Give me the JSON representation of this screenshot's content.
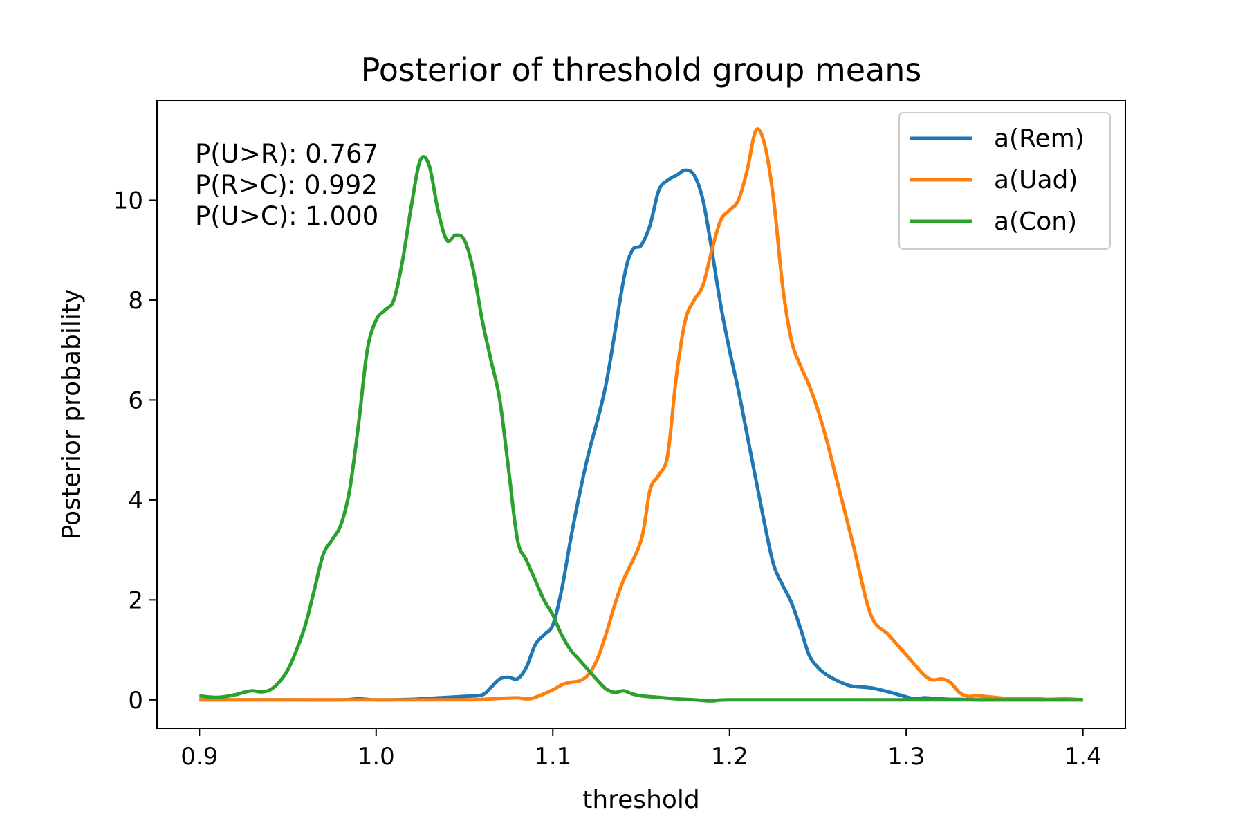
{
  "chart_data": {
    "type": "line",
    "title": "Posterior of threshold group means",
    "xlabel": "threshold",
    "ylabel": "Posterior probability",
    "xlim": [
      0.876,
      1.424
    ],
    "ylim": [
      -0.57,
      12.0
    ],
    "xticks": [
      0.9,
      1.0,
      1.1,
      1.2,
      1.3,
      1.4
    ],
    "xtick_labels": [
      "0.9",
      "1.0",
      "1.1",
      "1.2",
      "1.3",
      "1.4"
    ],
    "yticks": [
      0,
      2,
      4,
      6,
      8,
      10
    ],
    "ytick_labels": [
      "0",
      "2",
      "4",
      "6",
      "8",
      "10"
    ],
    "grid": false,
    "legend_position": "top-right",
    "annotations": [
      "P(U>R): 0.767",
      "P(R>C): 0.992",
      "P(U>C): 1.000"
    ],
    "series": [
      {
        "name": "a(Rem)",
        "color": "#1f77b4",
        "x": [
          0.9,
          0.95,
          0.98,
          0.99,
          1.0,
          1.02,
          1.04,
          1.05,
          1.06,
          1.065,
          1.07,
          1.075,
          1.08,
          1.085,
          1.09,
          1.095,
          1.1,
          1.105,
          1.11,
          1.115,
          1.12,
          1.13,
          1.14,
          1.145,
          1.15,
          1.155,
          1.16,
          1.165,
          1.17,
          1.175,
          1.18,
          1.185,
          1.19,
          1.195,
          1.2,
          1.205,
          1.21,
          1.22,
          1.225,
          1.23,
          1.235,
          1.24,
          1.245,
          1.25,
          1.255,
          1.26,
          1.265,
          1.27,
          1.28,
          1.29,
          1.3,
          1.305,
          1.31,
          1.315,
          1.32,
          1.325,
          1.33,
          1.34,
          1.35,
          1.36,
          1.4
        ],
        "y": [
          0.0,
          0.0,
          0.0,
          0.02,
          0.0,
          0.01,
          0.05,
          0.07,
          0.1,
          0.25,
          0.42,
          0.45,
          0.42,
          0.65,
          1.1,
          1.3,
          1.5,
          2.2,
          3.2,
          4.1,
          4.9,
          6.3,
          8.4,
          9.0,
          9.1,
          9.5,
          10.2,
          10.4,
          10.5,
          10.6,
          10.5,
          10.0,
          9.0,
          7.9,
          7.0,
          6.2,
          5.3,
          3.5,
          2.7,
          2.3,
          1.95,
          1.45,
          0.9,
          0.65,
          0.5,
          0.4,
          0.32,
          0.27,
          0.24,
          0.16,
          0.06,
          0.02,
          0.04,
          0.03,
          0.02,
          0.01,
          0.01,
          0.0,
          0.0,
          0.0,
          0.0
        ]
      },
      {
        "name": "a(Uad)",
        "color": "#ff7f0e",
        "x": [
          0.9,
          0.95,
          1.0,
          1.05,
          1.06,
          1.07,
          1.08,
          1.085,
          1.09,
          1.1,
          1.105,
          1.11,
          1.115,
          1.12,
          1.125,
          1.13,
          1.135,
          1.14,
          1.15,
          1.155,
          1.16,
          1.165,
          1.17,
          1.175,
          1.18,
          1.185,
          1.19,
          1.195,
          1.2,
          1.205,
          1.21,
          1.215,
          1.22,
          1.225,
          1.23,
          1.235,
          1.24,
          1.245,
          1.25,
          1.255,
          1.26,
          1.27,
          1.28,
          1.29,
          1.3,
          1.31,
          1.315,
          1.32,
          1.325,
          1.33,
          1.335,
          1.34,
          1.35,
          1.36,
          1.37,
          1.38,
          1.39,
          1.4
        ],
        "y": [
          0.0,
          0.0,
          0.0,
          0.0,
          0.01,
          0.03,
          0.04,
          0.02,
          0.05,
          0.2,
          0.3,
          0.35,
          0.38,
          0.5,
          0.8,
          1.3,
          1.9,
          2.4,
          3.2,
          4.2,
          4.5,
          4.9,
          6.5,
          7.6,
          8.0,
          8.3,
          9.0,
          9.6,
          9.8,
          10.0,
          10.6,
          11.4,
          11.1,
          10.0,
          8.3,
          7.2,
          6.7,
          6.3,
          5.8,
          5.2,
          4.5,
          3.1,
          1.7,
          1.3,
          0.9,
          0.5,
          0.4,
          0.42,
          0.35,
          0.15,
          0.07,
          0.08,
          0.05,
          0.02,
          0.03,
          0.01,
          0.02,
          0.0
        ]
      },
      {
        "name": "a(Con)",
        "color": "#2ca02c",
        "x": [
          0.9,
          0.91,
          0.92,
          0.925,
          0.93,
          0.935,
          0.94,
          0.945,
          0.95,
          0.955,
          0.96,
          0.965,
          0.97,
          0.975,
          0.98,
          0.985,
          0.99,
          0.995,
          1.0,
          1.005,
          1.01,
          1.015,
          1.02,
          1.025,
          1.03,
          1.035,
          1.04,
          1.045,
          1.05,
          1.055,
          1.06,
          1.065,
          1.07,
          1.075,
          1.08,
          1.085,
          1.09,
          1.095,
          1.1,
          1.105,
          1.11,
          1.115,
          1.12,
          1.125,
          1.13,
          1.135,
          1.14,
          1.145,
          1.15,
          1.16,
          1.17,
          1.18,
          1.19,
          1.2,
          1.25,
          1.3,
          1.35,
          1.4
        ],
        "y": [
          0.08,
          0.05,
          0.1,
          0.15,
          0.18,
          0.16,
          0.2,
          0.35,
          0.6,
          1.0,
          1.5,
          2.2,
          2.9,
          3.2,
          3.5,
          4.2,
          5.5,
          7.0,
          7.6,
          7.8,
          8.0,
          8.8,
          9.9,
          10.8,
          10.7,
          9.8,
          9.2,
          9.3,
          9.2,
          8.6,
          7.6,
          6.8,
          6.0,
          4.6,
          3.2,
          2.8,
          2.4,
          2.0,
          1.7,
          1.3,
          1.0,
          0.8,
          0.6,
          0.4,
          0.22,
          0.15,
          0.18,
          0.12,
          0.08,
          0.05,
          0.02,
          0.0,
          -0.02,
          0.0,
          0.0,
          0.0,
          0.0,
          0.0
        ]
      }
    ]
  }
}
